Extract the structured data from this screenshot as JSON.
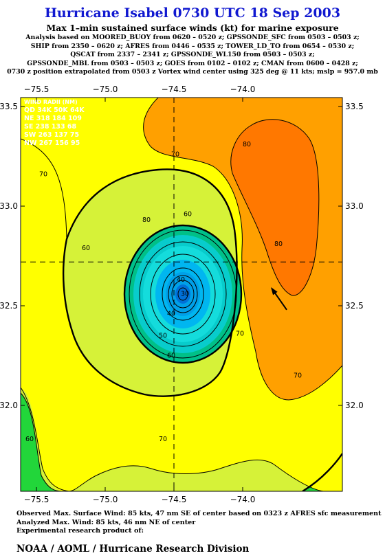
{
  "header": {
    "title": "Hurricane Isabel 0730 UTC 18 Sep 2003",
    "subtitle": "Max 1–min sustained surface winds (kt) for marine exposure",
    "analysis_lines": [
      "Analysis based on  MOORED_BUOY from 0620 – 0520 z;  GPSSONDE_SFC from 0503 – 0503 z;",
      "SHIP from 2350 – 0620 z;  AFRES from 0446 – 0535 z;  TOWER_LD_TO from 0654 – 0530 z;",
      "QSCAT from 2337 – 2341 z;  GPSSONDE_WL150 from 0503 – 0503 z;",
      "GPSSONDE_MBL from 0503 – 0503 z;  GOES from 0102 – 0102 z;  CMAN from 0600 – 0428 z;",
      "0730 z position extrapolated from 0503 z Vortex wind center using 325 deg @ 11 kts; mslp = 957.0 mb"
    ]
  },
  "wind_radii": {
    "title": "WIND RADII (NM)",
    "rows": [
      "QD 34K 50K 64K",
      "NE 318 184 109",
      "SE 238 133  68",
      "SW 263 137  75",
      "NW 267 156  95"
    ]
  },
  "chart_data": {
    "type": "contour",
    "xlim": [
      -75.6,
      -73.5
    ],
    "ylim": [
      31.7,
      33.7
    ],
    "x_ticks": [
      -75.5,
      -75.0,
      -74.5,
      -74.0
    ],
    "x_tick_labels": [
      "−75.5",
      "−75.0",
      "−74.5",
      "−74.0"
    ],
    "y_ticks": [
      32.0,
      32.5,
      33.0,
      33.5
    ],
    "y_tick_labels": [
      "32.0",
      "32.5",
      "33.0",
      "33.5"
    ],
    "center": {
      "lon": -74.5,
      "lat": 32.72
    },
    "contour_labels": [
      {
        "text": "80",
        "lon": -73.97,
        "lat": 33.3
      },
      {
        "text": "70",
        "lon": -74.49,
        "lat": 33.25
      },
      {
        "text": "70",
        "lon": -75.45,
        "lat": 33.15
      },
      {
        "text": "60",
        "lon": -74.4,
        "lat": 32.95
      },
      {
        "text": "80",
        "lon": -74.7,
        "lat": 32.92
      },
      {
        "text": "60",
        "lon": -75.14,
        "lat": 32.78
      },
      {
        "text": "80",
        "lon": -73.74,
        "lat": 32.8
      },
      {
        "text": "40",
        "lon": -74.45,
        "lat": 32.62
      },
      {
        "text": "30",
        "lon": -74.42,
        "lat": 32.55
      },
      {
        "text": "40",
        "lon": -74.52,
        "lat": 32.45
      },
      {
        "text": "50",
        "lon": -74.58,
        "lat": 32.34
      },
      {
        "text": "60",
        "lon": -74.52,
        "lat": 32.24
      },
      {
        "text": "70",
        "lon": -74.02,
        "lat": 32.35
      },
      {
        "text": "70",
        "lon": -73.6,
        "lat": 32.14
      },
      {
        "text": "70",
        "lon": -74.58,
        "lat": 31.82
      },
      {
        "text": "60",
        "lon": -75.55,
        "lat": 31.82
      }
    ],
    "motion_arrow": {
      "lon": -73.68,
      "lat": 32.48,
      "direction_deg": 325
    },
    "colors": {
      "lt60": "#22d63a",
      "r60_70": "#d6f238",
      "r70_80": "#ffff00",
      "r80_90": "#ffa000",
      "high_box": "#ff7800",
      "eye_levels": [
        "#00c088",
        "#08cccc",
        "#14dcdc",
        "#00b6f0",
        "#00a0e8",
        "#0070d8"
      ]
    }
  },
  "footer": {
    "lines": [
      "Observed Max. Surface Wind: 85 kts, 47 nm SE of center based on 0323 z AFRES sfc measurement",
      "Analyzed Max. Wind: 85 kts, 46 nm NE of center",
      "Experimental research product of:"
    ],
    "credit": "NOAA / AOML / Hurricane Research Division"
  }
}
